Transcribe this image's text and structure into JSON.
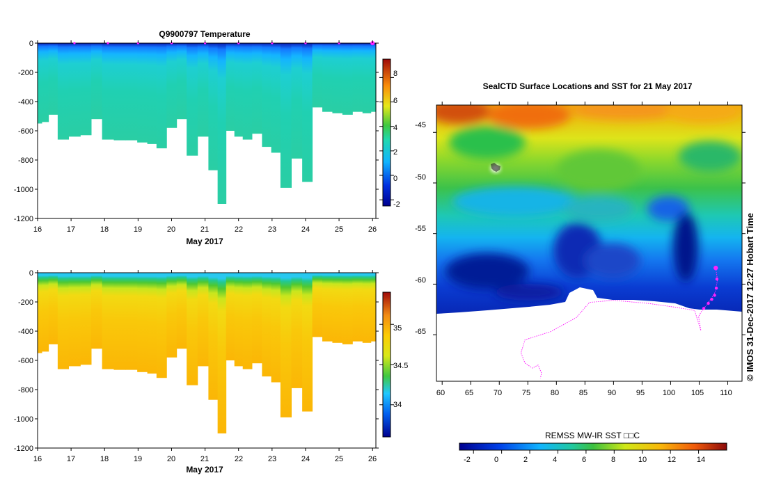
{
  "chart_data": [
    {
      "type": "heatmap",
      "title": "Q9900797  Temperature",
      "xlabel": "May 2017",
      "ylabel": "",
      "x_ticks": [
        "16",
        "17",
        "18",
        "19",
        "20",
        "21",
        "22",
        "23",
        "24",
        "25",
        "26"
      ],
      "y_ticks": [
        "0",
        "-200",
        "-400",
        "-600",
        "-800",
        "-1000",
        "-1200"
      ],
      "xlim": [
        16,
        26.1
      ],
      "ylim": [
        -1200,
        0
      ],
      "colorbar": {
        "range": [
          -2.5,
          9.5
        ],
        "ticks": [
          "8",
          "6",
          "4",
          "2",
          "0",
          "-2"
        ],
        "tick_values": [
          8,
          6,
          4,
          2,
          0,
          -2
        ]
      },
      "profiles": {
        "day": [
          16.05,
          16.2,
          16.45,
          16.75,
          17.1,
          17.45,
          17.75,
          18.1,
          18.45,
          18.8,
          19.15,
          19.4,
          19.7,
          20.0,
          20.3,
          20.6,
          20.95,
          21.25,
          21.5,
          21.75,
          22.0,
          22.25,
          22.55,
          22.85,
          23.1,
          23.4,
          23.75,
          24.05,
          24.35,
          24.65,
          24.95,
          25.25,
          25.55,
          25.85,
          26.05
        ],
        "max_depth": [
          550,
          540,
          490,
          660,
          640,
          630,
          520,
          660,
          665,
          665,
          680,
          690,
          720,
          580,
          520,
          770,
          640,
          870,
          1100,
          600,
          640,
          660,
          620,
          710,
          750,
          990,
          790,
          950,
          440,
          470,
          480,
          490,
          470,
          480,
          470
        ]
      },
      "markers": [
        17.1,
        18.1,
        19.0,
        20.0,
        21.0,
        22.0,
        23.0,
        24.0,
        25.0,
        26.0
      ]
    },
    {
      "type": "heatmap",
      "title": "",
      "xlabel": "May 2017",
      "ylabel": "",
      "x_ticks": [
        "16",
        "17",
        "18",
        "19",
        "20",
        "21",
        "22",
        "23",
        "24",
        "25",
        "26"
      ],
      "y_ticks": [
        "0",
        "-200",
        "-400",
        "-600",
        "-800",
        "-1000",
        "-1200"
      ],
      "xlim": [
        16,
        26.1
      ],
      "ylim": [
        -1200,
        0
      ],
      "colorbar": {
        "range": [
          33.6,
          35.4
        ],
        "ticks": [
          "35",
          "34.5",
          "34"
        ],
        "tick_values": [
          35,
          34.5,
          34
        ]
      }
    },
    {
      "type": "heatmap",
      "title": "SealCTD Surface Locations and SST for 21 May 2017",
      "xlabel": "",
      "ylabel": "",
      "x_ticks": [
        "60",
        "65",
        "70",
        "75",
        "80",
        "85",
        "90",
        "95",
        "100",
        "105",
        "110"
      ],
      "y_ticks": [
        "-45",
        "-50",
        "-55",
        "-60",
        "-65"
      ],
      "xlim": [
        59,
        112.5
      ],
      "ylim": [
        -69.6,
        -42.3
      ],
      "colorbar": {
        "label": "REMSS MW-IR SST □□C",
        "range": [
          -3,
          16
        ],
        "ticks": [
          "-2",
          "0",
          "2",
          "4",
          "6",
          "8",
          "10",
          "12",
          "14"
        ],
        "tick_values": [
          -2,
          0,
          2,
          4,
          6,
          8,
          10,
          12,
          14
        ]
      },
      "track": [
        [
          107.9,
          -58.4
        ],
        [
          108.2,
          -59.6
        ],
        [
          107.8,
          -60.8
        ],
        [
          107.0,
          -61.5
        ],
        [
          106.1,
          -62.2
        ],
        [
          105.4,
          -62.7
        ],
        [
          104.9,
          -63.2
        ],
        [
          105.3,
          -64.6
        ],
        [
          104.2,
          -62.6
        ],
        [
          101,
          -62.3
        ],
        [
          96,
          -61.9
        ],
        [
          90,
          -61.6
        ],
        [
          85.8,
          -61.8
        ],
        [
          83.5,
          -63.3
        ],
        [
          79,
          -64.7
        ],
        [
          74.5,
          -65.5
        ],
        [
          73.8,
          -66.8
        ],
        [
          74.5,
          -67.8
        ],
        [
          75.8,
          -68.3
        ],
        [
          76.8,
          -68.0
        ],
        [
          77.4,
          -68.8
        ],
        [
          77.2,
          -69.3
        ]
      ],
      "recent_points": [
        [
          107.9,
          -58.4
        ],
        [
          108.1,
          -59.5
        ],
        [
          108.0,
          -60.4
        ],
        [
          107.7,
          -61.1
        ],
        [
          107.2,
          -61.5
        ],
        [
          106.6,
          -61.9
        ],
        [
          105.8,
          -62.4
        ]
      ]
    }
  ],
  "credit": "© IMOS 31-Dec-2017 12:27 Hobart Time"
}
